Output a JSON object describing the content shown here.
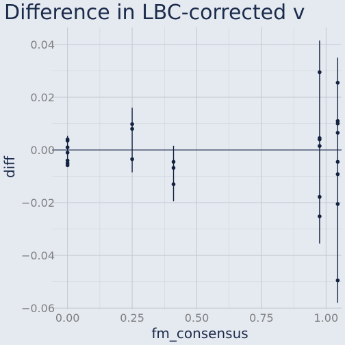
{
  "chart_data": {
    "type": "scatter",
    "title": "Difference in LBC-corrected v",
    "xlabel": "fm_consensus",
    "ylabel": "diff",
    "xlim": [
      -0.06,
      1.06
    ],
    "ylim": [
      -0.0605,
      0.0465
    ],
    "x_ticks": [
      0.0,
      0.25,
      0.5,
      0.75,
      1.0
    ],
    "x_tick_labels": [
      "0.00",
      "0.25",
      "0.50",
      "0.75",
      "1.00"
    ],
    "y_ticks": [
      -0.06,
      -0.04,
      -0.02,
      0.0,
      0.02,
      0.04
    ],
    "y_tick_labels": [
      "−0.06",
      "−0.04",
      "−0.02",
      "0.00",
      "0.02",
      "0.04"
    ],
    "grid": true,
    "zero_line": true,
    "colors": {
      "background": "#e5e9f0",
      "grid": "#c3c8d0",
      "marker": "#13233f",
      "zero_line": "#1b2b4b",
      "text": "#808080"
    },
    "error_bars": [
      {
        "x": 0.0,
        "low": -0.0055,
        "high": 0.0053
      },
      {
        "x": 0.25,
        "low": -0.0085,
        "high": 0.016
      },
      {
        "x": 0.41,
        "low": -0.0195,
        "high": 0.0016
      },
      {
        "x": 0.975,
        "low": -0.0355,
        "high": 0.0415
      },
      {
        "x": 1.045,
        "low": -0.058,
        "high": 0.035
      }
    ],
    "points": [
      {
        "x": 0.0,
        "y": 0.004
      },
      {
        "x": 0.0,
        "y": 0.0035
      },
      {
        "x": 0.0,
        "y": 0.001
      },
      {
        "x": 0.0,
        "y": -0.001
      },
      {
        "x": 0.0,
        "y": -0.004
      },
      {
        "x": 0.0,
        "y": -0.005
      },
      {
        "x": 0.0,
        "y": -0.0058
      },
      {
        "x": 0.25,
        "y": 0.0098
      },
      {
        "x": 0.25,
        "y": 0.008
      },
      {
        "x": 0.25,
        "y": -0.0035
      },
      {
        "x": 0.41,
        "y": -0.0045
      },
      {
        "x": 0.41,
        "y": -0.0068
      },
      {
        "x": 0.41,
        "y": -0.013
      },
      {
        "x": 0.975,
        "y": 0.0295
      },
      {
        "x": 0.975,
        "y": 0.0045
      },
      {
        "x": 0.975,
        "y": 0.004
      },
      {
        "x": 0.975,
        "y": 0.0015
      },
      {
        "x": 0.975,
        "y": -0.0178
      },
      {
        "x": 0.975,
        "y": -0.0252
      },
      {
        "x": 1.045,
        "y": 0.0255
      },
      {
        "x": 1.045,
        "y": 0.011
      },
      {
        "x": 1.045,
        "y": 0.01
      },
      {
        "x": 1.045,
        "y": 0.0065
      },
      {
        "x": 1.045,
        "y": -0.0045
      },
      {
        "x": 1.045,
        "y": -0.0092
      },
      {
        "x": 1.045,
        "y": -0.0205
      },
      {
        "x": 1.045,
        "y": -0.0495
      }
    ]
  }
}
